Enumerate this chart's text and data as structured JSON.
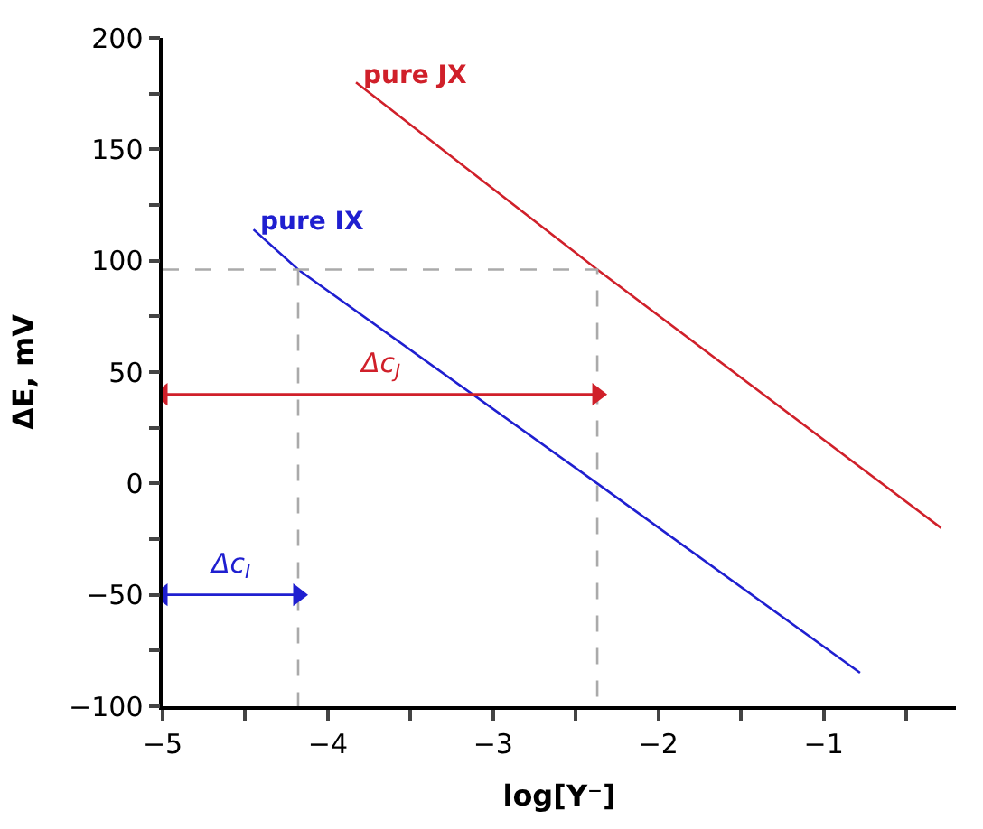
{
  "chart_data": {
    "type": "line",
    "xlabel": "log[Y⁻]",
    "ylabel": "ΔE, mV",
    "xlim": [
      -5,
      -0.2
    ],
    "ylim": [
      -100,
      200
    ],
    "xticks": [
      -5,
      {
        "value": -4.5,
        "label": null
      },
      -4,
      {
        "value": -3.5,
        "label": null
      },
      -3,
      {
        "value": -2.5,
        "label": null
      },
      -2,
      {
        "value": -1.5,
        "label": null
      },
      -1,
      {
        "value": -0.5,
        "label": null
      }
    ],
    "yticks": [
      -100,
      {
        "value": -75,
        "label": null
      },
      -50,
      {
        "value": -25,
        "label": null
      },
      0,
      {
        "value": 25,
        "label": null
      },
      50,
      {
        "value": 75,
        "label": null
      },
      100,
      {
        "value": 125,
        "label": null
      },
      150,
      {
        "value": 175,
        "label": null
      },
      200
    ],
    "grid": false,
    "legend": false,
    "series": [
      {
        "name": "pure JX",
        "color": "#d0202a",
        "x": [
          -3.83,
          -2.37,
          -0.29
        ],
        "values": [
          180,
          96,
          -20
        ]
      },
      {
        "name": "pure IX",
        "color": "#1f1fd0",
        "x": [
          -4.45,
          -4.18,
          -2.37,
          -0.78
        ],
        "values": [
          114,
          96,
          0,
          -85
        ]
      },
      {
        "color": "#aaaaaa",
        "line_style": "dashed",
        "x": [
          -5,
          -2.37,
          -2.37
        ],
        "values": [
          96,
          96,
          -100
        ]
      },
      {
        "color": "#aaaaaa",
        "line_style": "dashed",
        "x": [
          -4.18,
          -4.18
        ],
        "values": [
          96,
          -100
        ]
      },
      {
        "color": "#d0202a",
        "marker": "triangle",
        "x": [
          -5,
          -2.37
        ],
        "values": [
          40,
          40
        ]
      },
      {
        "color": "#1f1fd0",
        "marker": "triangle",
        "x": [
          -5,
          -4.18
        ],
        "values": [
          -50,
          -50
        ]
      }
    ],
    "annotations": [
      "Δc$_{J}$",
      "Δc$_{I}$"
    ]
  }
}
